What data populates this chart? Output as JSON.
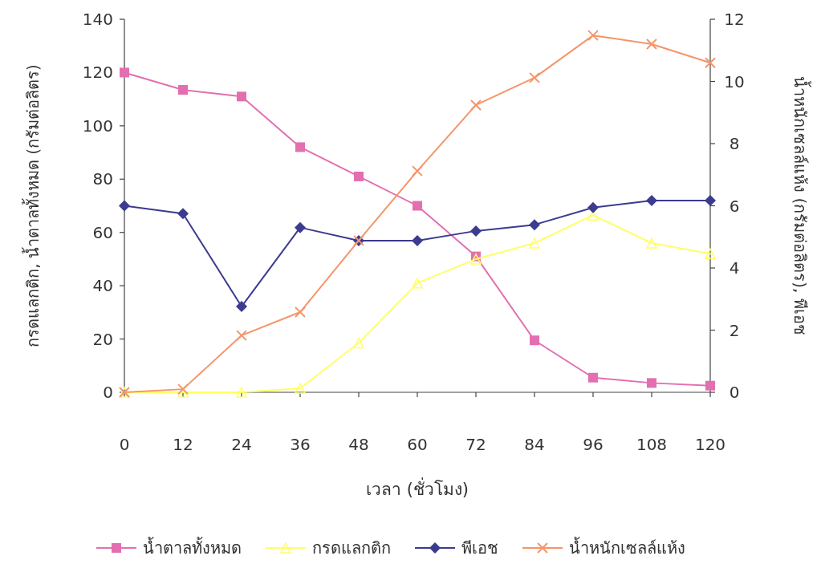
{
  "chart_data": {
    "type": "line",
    "xlabel": "เวลา (ชั่วโมง)",
    "ylabel": "กรดแลกติก, น้ำตาลทั้งหมด (กรัมต่อลิตร)",
    "y2label": "น้ำหนักเซลล์แห้ง (กรัมต่อลิตร), พีเอช",
    "x": [
      0,
      12,
      24,
      36,
      48,
      60,
      72,
      84,
      96,
      108,
      120
    ],
    "xlim": [
      0,
      120
    ],
    "xticks": [
      0,
      12,
      24,
      36,
      48,
      60,
      72,
      84,
      96,
      108,
      120
    ],
    "ylim": [
      0,
      140
    ],
    "yticks": [
      0,
      20,
      40,
      60,
      80,
      100,
      120,
      140
    ],
    "y2lim": [
      0,
      12
    ],
    "y2ticks": [
      0,
      2,
      4,
      6,
      8,
      10,
      12
    ],
    "grid": false,
    "legend": "bottom",
    "series": [
      {
        "name": "น้ำตาลทั้งหมด",
        "color": "#e36fb0",
        "marker": "square",
        "values": [
          120,
          113.5,
          111,
          92,
          81,
          70,
          51,
          19.5,
          5.5,
          3.5,
          2.5
        ]
      },
      {
        "name": "กรดแลกติก",
        "color": "#ffff66",
        "marker": "triangle",
        "values": [
          0,
          0,
          0,
          1.5,
          18.5,
          41,
          50,
          56,
          66.5,
          56,
          52
        ]
      },
      {
        "name": "พีเอช",
        "color": "#3b3b8f",
        "marker": "diamond",
        "axis": "y2",
        "values": [
          6.0,
          5.75,
          2.76,
          5.3,
          4.88,
          4.88,
          5.19,
          5.39,
          5.94,
          6.17,
          6.17
        ]
      },
      {
        "name": "น้ำหนักเซลล์แห้ง",
        "color": "#f4956a",
        "marker": "cross",
        "axis": "y2",
        "values": [
          0,
          0.1,
          1.83,
          2.58,
          4.88,
          7.12,
          9.24,
          10.12,
          11.48,
          11.2,
          10.6
        ]
      }
    ]
  }
}
